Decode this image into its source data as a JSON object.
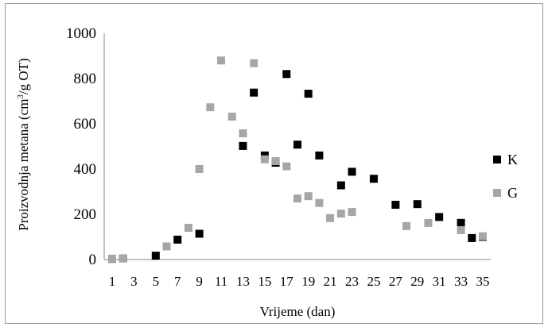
{
  "chart_data": {
    "type": "scatter",
    "title": "",
    "xlabel": "Vrijeme (dan)",
    "ylabel_main": "Proizvodnja metana (cm",
    "ylabel_sup": "3",
    "ylabel_tail": "/g OT)",
    "ylim": [
      0,
      1000
    ],
    "yticks": [
      0,
      200,
      400,
      600,
      800,
      1000
    ],
    "xlim": [
      1,
      35
    ],
    "xticks": [
      "1",
      "3",
      "5",
      "7",
      "9",
      "11",
      "13",
      "15",
      "17",
      "19",
      "21",
      "23",
      "25",
      "27",
      "29",
      "31",
      "33",
      "35"
    ],
    "legend_position": "right",
    "grid": false,
    "series": [
      {
        "name": "K",
        "color": "#000000",
        "points": [
          [
            1,
            3
          ],
          [
            2,
            5
          ],
          [
            5,
            17
          ],
          [
            7,
            88
          ],
          [
            9,
            114
          ],
          [
            13,
            502
          ],
          [
            14,
            738
          ],
          [
            15,
            460
          ],
          [
            16,
            428
          ],
          [
            17,
            820
          ],
          [
            18,
            508
          ],
          [
            19,
            733
          ],
          [
            20,
            460
          ],
          [
            22,
            328
          ],
          [
            23,
            388
          ],
          [
            25,
            357
          ],
          [
            27,
            242
          ],
          [
            29,
            245
          ],
          [
            31,
            188
          ],
          [
            33,
            162
          ],
          [
            34,
            95
          ],
          [
            35,
            100
          ]
        ]
      },
      {
        "name": "G",
        "color": "#a6a6a6",
        "points": [
          [
            1,
            4
          ],
          [
            2,
            5
          ],
          [
            6,
            58
          ],
          [
            8,
            140
          ],
          [
            9,
            400
          ],
          [
            10,
            673
          ],
          [
            11,
            880
          ],
          [
            12,
            632
          ],
          [
            13,
            558
          ],
          [
            14,
            868
          ],
          [
            15,
            443
          ],
          [
            16,
            435
          ],
          [
            17,
            412
          ],
          [
            18,
            270
          ],
          [
            19,
            280
          ],
          [
            20,
            250
          ],
          [
            21,
            183
          ],
          [
            22,
            203
          ],
          [
            23,
            210
          ],
          [
            28,
            148
          ],
          [
            30,
            162
          ],
          [
            33,
            130
          ],
          [
            35,
            103
          ]
        ]
      }
    ]
  }
}
